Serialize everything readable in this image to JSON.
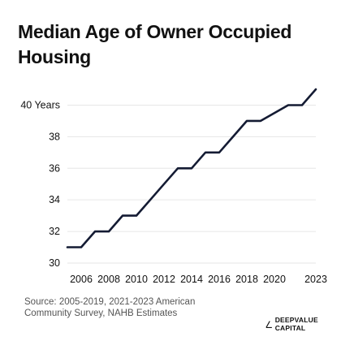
{
  "title": "Median Age of Owner Occupied Housing",
  "source": "Source: 2005-2019, 2021-2023 American Community Survey, NAHB Estimates",
  "brand": {
    "name": "DEEPVALUE CAPITAL",
    "logo_icon": "triangle-line-icon"
  },
  "colors": {
    "line": "#141b33",
    "grid": "#e6e6e6",
    "text": "#111111"
  },
  "chart_data": {
    "type": "line",
    "title": "Median Age of Owner Occupied Housing",
    "xlabel": "",
    "ylabel": "",
    "x": [
      2005,
      2006,
      2007,
      2008,
      2009,
      2010,
      2011,
      2012,
      2013,
      2014,
      2015,
      2016,
      2017,
      2018,
      2019,
      2021,
      2022,
      2023
    ],
    "y": [
      31,
      31,
      32,
      32,
      33,
      33,
      34,
      35,
      36,
      36,
      37,
      37,
      38,
      39,
      39,
      40,
      40,
      41
    ],
    "xlim": [
      2005,
      2023
    ],
    "ylim": [
      30,
      41
    ],
    "x_ticks": [
      2006,
      2008,
      2010,
      2012,
      2014,
      2016,
      2018,
      2020,
      2023
    ],
    "x_tick_labels": [
      "2006",
      "2008",
      "2010",
      "2012",
      "2014",
      "2016",
      "2018",
      "2020",
      "2023"
    ],
    "y_ticks": [
      30,
      32,
      34,
      36,
      38,
      40
    ],
    "y_tick_labels": [
      "30",
      "32",
      "34",
      "36",
      "38",
      "40 Years"
    ],
    "grid": "horizontal"
  }
}
